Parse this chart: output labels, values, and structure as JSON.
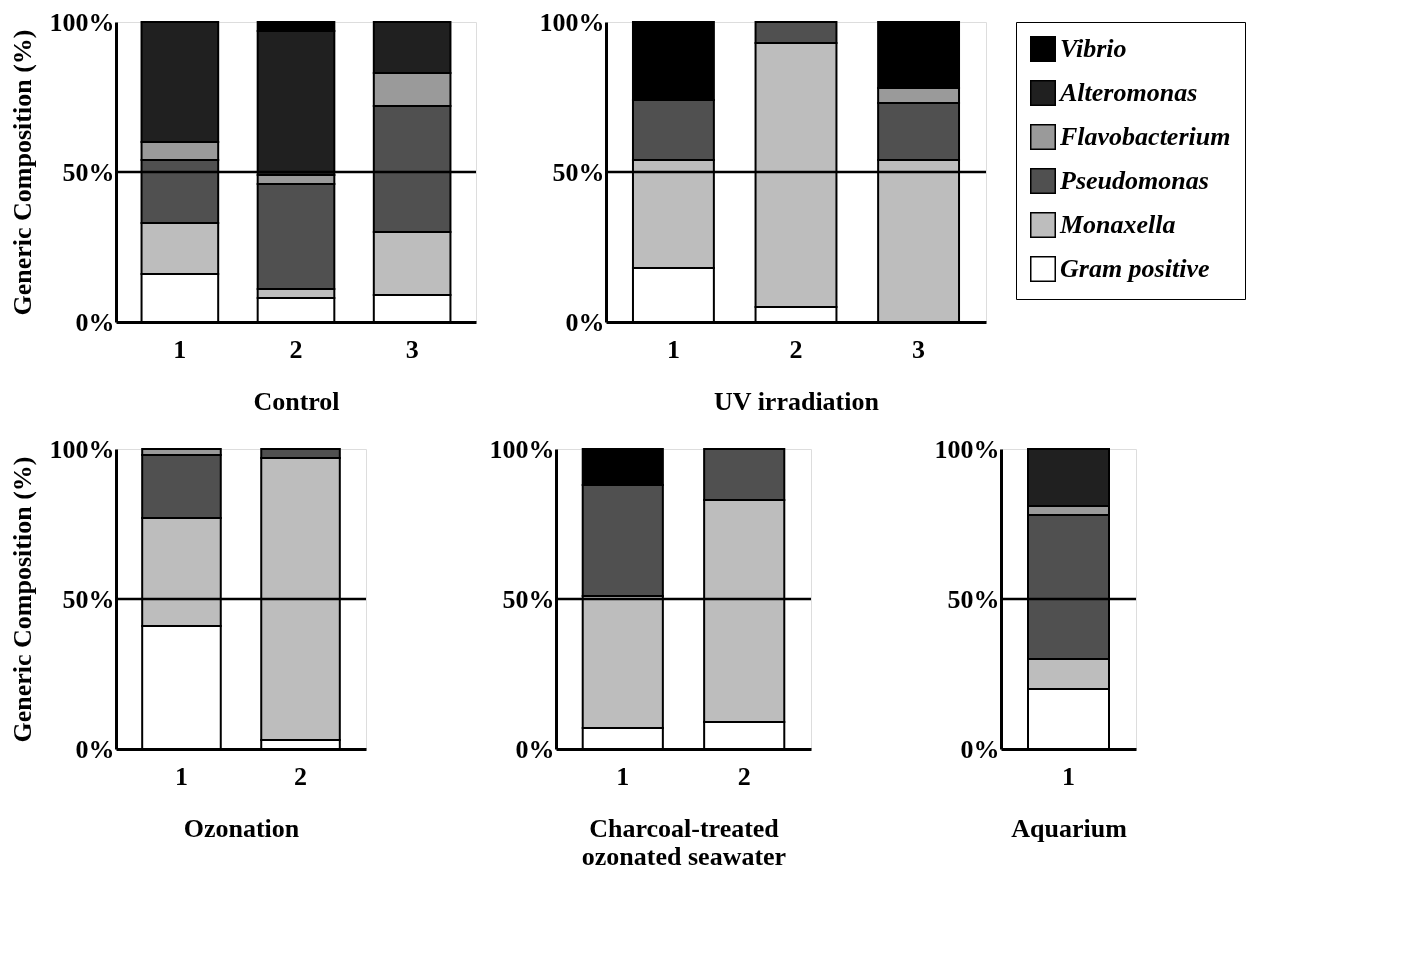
{
  "chart_data": [
    {
      "type": "bar",
      "stacked": true,
      "categories": [
        "1",
        "2",
        "3"
      ],
      "xlabel": "Control",
      "ylabel": "Generic Composition (%)",
      "ylim": [
        0,
        100
      ],
      "yticks": [
        {
          "value": 0,
          "label": "0%"
        },
        {
          "value": 50,
          "label": "50%"
        },
        {
          "value": 100,
          "label": "100%"
        }
      ],
      "ref_lines": [
        {
          "axis": "y",
          "value": 50
        }
      ],
      "series": [
        {
          "color": "#ffffff",
          "values": [
            16,
            8,
            9
          ]
        },
        {
          "color": "#bdbdbd",
          "values": [
            17,
            3,
            21
          ]
        },
        {
          "color": "#505050",
          "values": [
            21,
            35,
            42
          ]
        },
        {
          "color": "#9a9a9a",
          "values": [
            6,
            3,
            11
          ]
        },
        {
          "color": "#202020",
          "values": [
            40,
            48,
            17
          ]
        },
        {
          "color": "#000000",
          "values": [
            0,
            3,
            0
          ]
        }
      ]
    },
    {
      "type": "bar",
      "stacked": true,
      "categories": [
        "1",
        "2",
        "3"
      ],
      "xlabel": "UV irradiation",
      "ylim": [
        0,
        100
      ],
      "yticks": [
        {
          "value": 0,
          "label": "0%"
        },
        {
          "value": 50,
          "label": "50%"
        },
        {
          "value": 100,
          "label": "100%"
        }
      ],
      "legend": "right",
      "ref_lines": [
        {
          "axis": "y",
          "value": 50
        }
      ],
      "series": [
        {
          "name": "Gram positive",
          "color": "#ffffff",
          "values": [
            18,
            5,
            0
          ]
        },
        {
          "name": "Monaxella",
          "color": "#bdbdbd",
          "values": [
            36,
            88,
            54
          ]
        },
        {
          "name": "Pseudomonas",
          "color": "#505050",
          "values": [
            20,
            7,
            19
          ]
        },
        {
          "name": "Flavobacterium",
          "color": "#9a9a9a",
          "values": [
            0,
            0,
            5
          ]
        },
        {
          "name": "Alteromonas",
          "color": "#202020",
          "values": [
            0,
            0,
            0
          ]
        },
        {
          "name": "Vibrio",
          "color": "#000000",
          "values": [
            26,
            0,
            22
          ]
        }
      ]
    },
    {
      "type": "bar",
      "stacked": true,
      "categories": [
        "1",
        "2"
      ],
      "xlabel": "Ozonation",
      "ylabel": "Generic Composition (%)",
      "ylim": [
        0,
        100
      ],
      "yticks": [
        {
          "value": 0,
          "label": "0%"
        },
        {
          "value": 50,
          "label": "50%"
        },
        {
          "value": 100,
          "label": "100%"
        }
      ],
      "ref_lines": [
        {
          "axis": "y",
          "value": 50
        }
      ],
      "series": [
        {
          "color": "#ffffff",
          "values": [
            41,
            3
          ]
        },
        {
          "color": "#bdbdbd",
          "values": [
            36,
            94
          ]
        },
        {
          "color": "#505050",
          "values": [
            21,
            3
          ]
        },
        {
          "color": "#9a9a9a",
          "values": [
            2,
            0
          ]
        },
        {
          "color": "#202020",
          "values": [
            0,
            0
          ]
        },
        {
          "color": "#000000",
          "values": [
            0,
            0
          ]
        }
      ]
    },
    {
      "type": "bar",
      "stacked": true,
      "categories": [
        "1",
        "2"
      ],
      "xlabel": "Charcoal-treated\nozonated seawater",
      "ylim": [
        0,
        100
      ],
      "yticks": [
        {
          "value": 0,
          "label": "0%"
        },
        {
          "value": 50,
          "label": "50%"
        },
        {
          "value": 100,
          "label": "100%"
        }
      ],
      "ref_lines": [
        {
          "axis": "y",
          "value": 50
        }
      ],
      "series": [
        {
          "color": "#ffffff",
          "values": [
            7,
            9
          ]
        },
        {
          "color": "#bdbdbd",
          "values": [
            44,
            74
          ]
        },
        {
          "color": "#505050",
          "values": [
            37,
            17
          ]
        },
        {
          "color": "#9a9a9a",
          "values": [
            0,
            0
          ]
        },
        {
          "color": "#202020",
          "values": [
            0,
            0
          ]
        },
        {
          "color": "#000000",
          "values": [
            12,
            0
          ]
        }
      ]
    },
    {
      "type": "bar",
      "stacked": true,
      "categories": [
        "1"
      ],
      "xlabel": "Aquarium",
      "ylim": [
        0,
        100
      ],
      "yticks": [
        {
          "value": 0,
          "label": "0%"
        },
        {
          "value": 50,
          "label": "50%"
        },
        {
          "value": 100,
          "label": "100%"
        }
      ],
      "ref_lines": [
        {
          "axis": "y",
          "value": 50
        }
      ],
      "series": [
        {
          "color": "#ffffff",
          "values": [
            20
          ]
        },
        {
          "color": "#bdbdbd",
          "values": [
            10
          ]
        },
        {
          "color": "#505050",
          "values": [
            48
          ]
        },
        {
          "color": "#9a9a9a",
          "values": [
            3
          ]
        },
        {
          "color": "#202020",
          "values": [
            19
          ]
        },
        {
          "color": "#000000",
          "values": [
            0
          ]
        }
      ]
    }
  ]
}
